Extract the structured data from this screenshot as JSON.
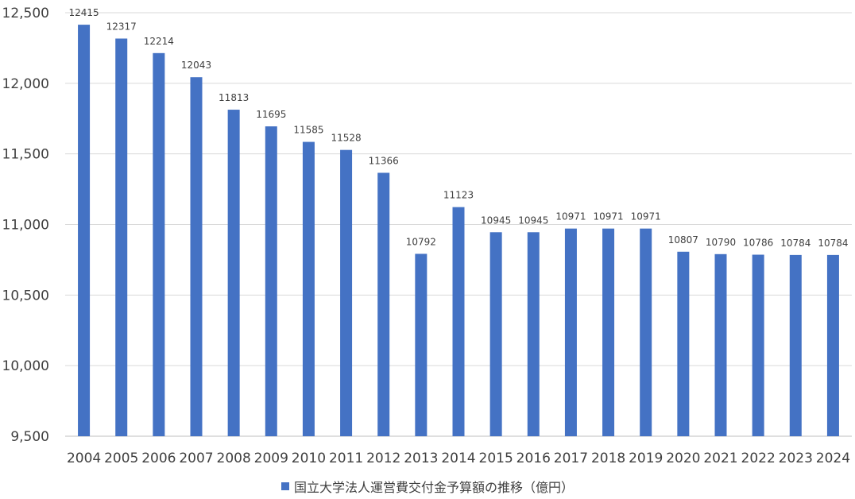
{
  "chart_data": {
    "type": "bar",
    "title": "",
    "xlabel": "",
    "ylabel": "",
    "ylim": [
      9500,
      12500
    ],
    "yticks": [
      9500,
      10000,
      10500,
      11000,
      11500,
      12000,
      12500
    ],
    "ytick_labels": [
      "9,500",
      "10,000",
      "10,500",
      "11,000",
      "11,500",
      "12,000",
      "12,500"
    ],
    "grid": true,
    "legend_position": "bottom",
    "categories": [
      "2004",
      "2005",
      "2006",
      "2007",
      "2008",
      "2009",
      "2010",
      "2011",
      "2012",
      "2013",
      "2014",
      "2015",
      "2016",
      "2017",
      "2018",
      "2019",
      "2020",
      "2021",
      "2022",
      "2023",
      "2024"
    ],
    "series": [
      {
        "name": "国立大学法人運営費交付金予算額の推移（億円）",
        "color": "#4472c4",
        "values": [
          12415,
          12317,
          12214,
          12043,
          11813,
          11695,
          11585,
          11528,
          11366,
          10792,
          11123,
          10945,
          10945,
          10971,
          10971,
          10971,
          10807,
          10790,
          10786,
          10784,
          10784
        ]
      }
    ]
  }
}
